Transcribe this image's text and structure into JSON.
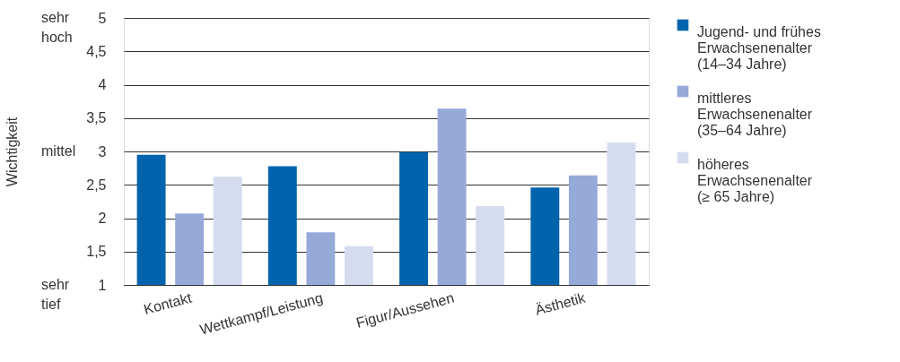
{
  "chart_data": {
    "type": "bar",
    "ylabel": "Wichtigkeit",
    "categories": [
      "Kontakt",
      "Wettkampf/Leistung",
      "Figur/Aussehen",
      "Ästhetik"
    ],
    "series": [
      {
        "name": "Jugend- und frühes\nErwachsenenalter\n(14–34 Jahre)",
        "color": "#0063ad",
        "values": [
          2.95,
          2.78,
          2.99,
          2.46
        ]
      },
      {
        "name": "mittleres\nErwachsenenalter\n(35–64 Jahre)",
        "color": "#96aad8",
        "values": [
          2.07,
          1.79,
          3.64,
          2.64
        ]
      },
      {
        "name": "höheres\nErwachsenenalter\n(≥ 65 Jahre)",
        "color": "#d5dcf0",
        "values": [
          2.62,
          1.58,
          2.18,
          3.13
        ]
      }
    ],
    "ylim": [
      1,
      5
    ],
    "yticks": [
      1,
      {
        "value": 1.5,
        "label": "1,5"
      },
      2,
      {
        "value": 2.5,
        "label": "2,5"
      },
      3,
      {
        "value": 3.5,
        "label": "3,5"
      },
      4,
      {
        "value": 4.5,
        "label": "4,5"
      },
      5
    ],
    "grid": "y",
    "legend": "right",
    "annotations": [
      "sehr\nhoch",
      "mittel",
      "sehr\ntief"
    ]
  }
}
